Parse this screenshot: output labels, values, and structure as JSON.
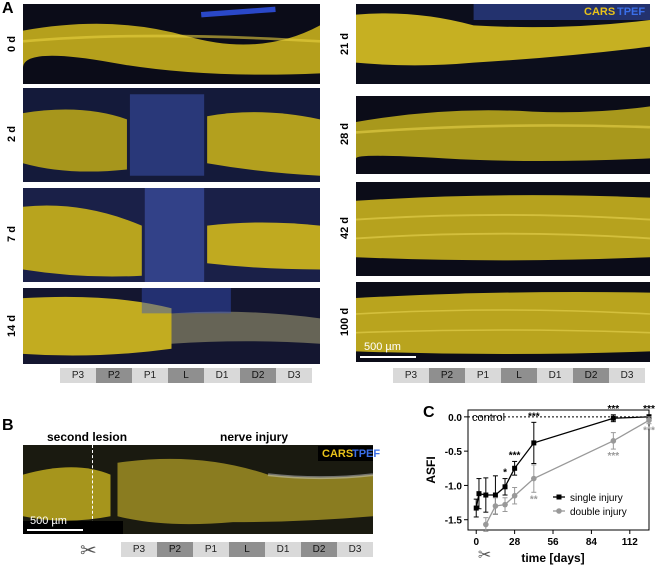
{
  "panels": {
    "a": "A",
    "b": "B",
    "c": "C"
  },
  "legend": {
    "cars": "CARS",
    "tpef": "TPEF",
    "cars_color": "#e8c21a",
    "tpef_color": "#3a6ee8"
  },
  "timepoints_left": [
    "0 d",
    "2 d",
    "7 d",
    "14 d"
  ],
  "timepoints_right": [
    "21 d",
    "28 d",
    "42 d",
    "100 d"
  ],
  "segments": [
    "P3",
    "P2",
    "P1",
    "L",
    "D1",
    "D2",
    "D3"
  ],
  "scale": {
    "label": "500 µm"
  },
  "panel_b": {
    "second_lesion": "second lesion",
    "nerve_injury": "nerve injury",
    "scissors_icon": "scissors-icon"
  },
  "chart_data": {
    "type": "line",
    "ylabel": "ASFI",
    "xlabel": "time [days]",
    "xticks": [
      0,
      28,
      56,
      84,
      112
    ],
    "yticks": [
      0.0,
      -0.5,
      -1.0,
      -1.5
    ],
    "ylim": [
      -1.65,
      0.1
    ],
    "xlim": [
      -6,
      126
    ],
    "control_label": "control",
    "series": [
      {
        "name": "single injury",
        "color": "#000000",
        "marker": "square",
        "x": [
          0,
          2,
          7,
          14,
          21,
          28,
          42,
          100,
          126
        ],
        "y": [
          -1.33,
          -1.12,
          -1.14,
          -1.14,
          -1.02,
          -0.75,
          -0.38,
          -0.02,
          0.0
        ],
        "err": [
          0.13,
          0.22,
          0.25,
          0.28,
          0.12,
          0.1,
          0.3,
          0.05,
          0.03
        ],
        "stars": [
          "",
          "",
          "",
          "",
          "*",
          "***",
          "***",
          "***",
          "***"
        ]
      },
      {
        "name": "double injury",
        "color": "#999999",
        "marker": "circle",
        "x": [
          7,
          14,
          21,
          28,
          42,
          100,
          126
        ],
        "y": [
          -1.57,
          -1.3,
          -1.28,
          -1.15,
          -0.9,
          -0.35,
          -0.05
        ],
        "err": [
          0.1,
          0.12,
          0.1,
          0.12,
          0.2,
          0.12,
          0.05
        ],
        "stars": [
          "",
          "",
          "",
          "",
          "**",
          "***",
          "***"
        ]
      }
    ]
  }
}
